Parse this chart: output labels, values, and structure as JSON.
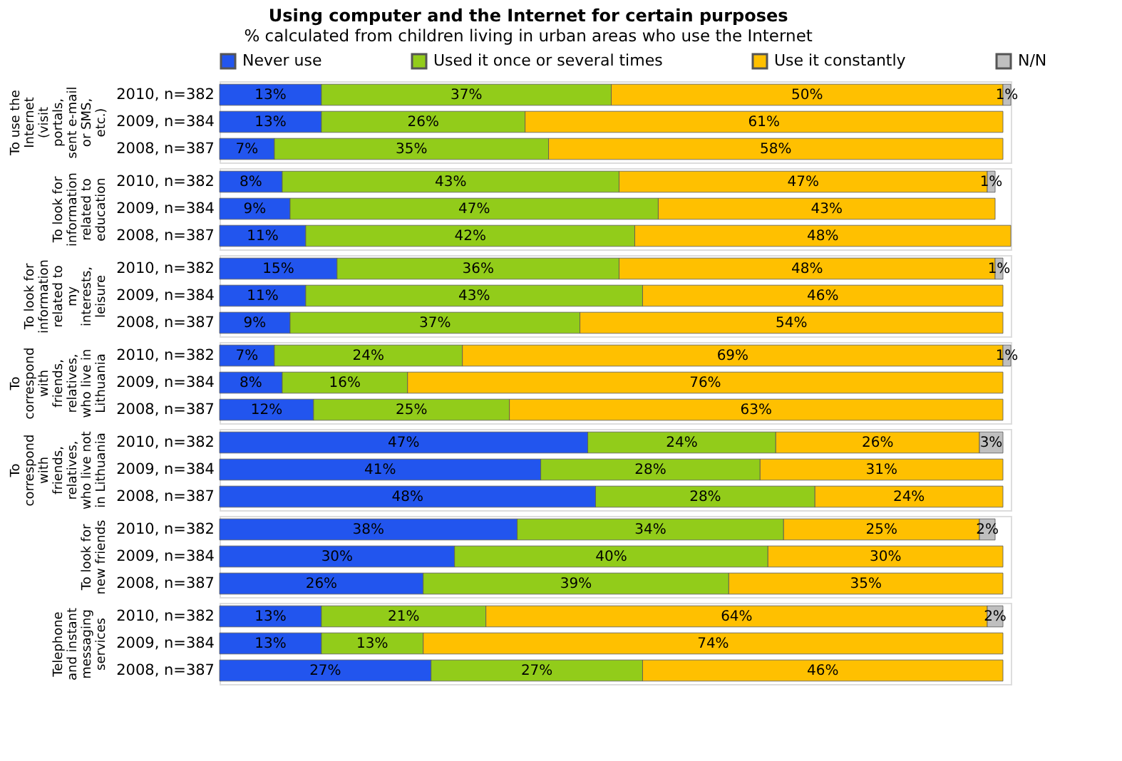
{
  "chart_data": [
    {
      "type": "bar",
      "orientation": "horizontal",
      "stacked": true,
      "data_labels": true,
      "legend": "top",
      "grid": false,
      "title": "Using computer and the Internet for certain purposes",
      "subtitle": "% calculated from children living in urban areas who use the Internet",
      "ylabel": "To use the Internet (visit portals, sent e-mail or SMS, etc.)",
      "categories": [
        "2010, n=382",
        "2009, n=384",
        "2008, n=387"
      ],
      "series": [
        {
          "name": "Never use",
          "color": "#2255ee",
          "values": [
            13,
            13,
            7
          ],
          "value_labels": [
            "13%",
            "13%",
            "7%"
          ]
        },
        {
          "name": "Used it once or several times",
          "color": "#92cc1a",
          "values": [
            37,
            26,
            35
          ],
          "value_labels": [
            "37%",
            "26%",
            "35%"
          ]
        },
        {
          "name": "Use it constantly",
          "color": "#ffc000",
          "values": [
            50,
            61,
            58
          ],
          "value_labels": [
            "50%",
            "61%",
            "58%"
          ]
        },
        {
          "name": "N/N",
          "color": "#bfbfbf",
          "values": [
            1,
            null,
            null
          ],
          "value_labels": [
            "1%",
            null,
            null
          ]
        }
      ]
    },
    {
      "type": "bar",
      "orientation": "horizontal",
      "stacked": true,
      "data_labels": true,
      "grid": false,
      "ylabel": "To look for information related to education",
      "categories": [
        "2010, n=382",
        "2009, n=384",
        "2008, n=387"
      ],
      "series": [
        {
          "color": "#2255ee",
          "values": [
            8,
            9,
            11
          ],
          "value_labels": [
            "8%",
            "9%",
            "11%"
          ]
        },
        {
          "color": "#92cc1a",
          "values": [
            43,
            47,
            42
          ],
          "value_labels": [
            "43%",
            "47%",
            "42%"
          ]
        },
        {
          "color": "#ffc000",
          "values": [
            47,
            43,
            48
          ],
          "value_labels": [
            "47%",
            "43%",
            "48%"
          ]
        },
        {
          "color": "#bfbfbf",
          "values": [
            1,
            null,
            null
          ],
          "value_labels": [
            "1%",
            null,
            null
          ]
        }
      ]
    },
    {
      "type": "bar",
      "orientation": "horizontal",
      "stacked": true,
      "data_labels": true,
      "grid": false,
      "ylabel": "To look for information related to my interests, leisure",
      "categories": [
        "2010, n=382",
        "2009, n=384",
        "2008, n=387"
      ],
      "series": [
        {
          "color": "#2255ee",
          "values": [
            15,
            11,
            9
          ],
          "value_labels": [
            "15%",
            "11%",
            "9%"
          ]
        },
        {
          "color": "#92cc1a",
          "values": [
            36,
            43,
            37
          ],
          "value_labels": [
            "36%",
            "43%",
            "37%"
          ]
        },
        {
          "color": "#ffc000",
          "values": [
            48,
            46,
            54
          ],
          "value_labels": [
            "48%",
            "46%",
            "54%"
          ]
        },
        {
          "color": "#bfbfbf",
          "values": [
            1,
            null,
            null
          ],
          "value_labels": [
            "1%",
            null,
            null
          ]
        }
      ]
    },
    {
      "type": "bar",
      "orientation": "horizontal",
      "stacked": true,
      "data_labels": true,
      "grid": false,
      "ylabel": "To correspond with friends, relatives, who live in Lithuania",
      "categories": [
        "2010, n=382",
        "2009, n=384",
        "2008, n=387"
      ],
      "series": [
        {
          "color": "#2255ee",
          "values": [
            7,
            8,
            12
          ],
          "value_labels": [
            "7%",
            "8%",
            "12%"
          ]
        },
        {
          "color": "#92cc1a",
          "values": [
            24,
            16,
            25
          ],
          "value_labels": [
            "24%",
            "16%",
            "25%"
          ]
        },
        {
          "color": "#ffc000",
          "values": [
            69,
            76,
            63
          ],
          "value_labels": [
            "69%",
            "76%",
            "63%"
          ]
        },
        {
          "color": "#bfbfbf",
          "values": [
            1,
            null,
            null
          ],
          "value_labels": [
            "1%",
            null,
            null
          ]
        }
      ]
    },
    {
      "type": "bar",
      "orientation": "horizontal",
      "stacked": true,
      "data_labels": true,
      "grid": false,
      "ylabel": "To correspond with friends, relatives, who live not in Lithuania",
      "categories": [
        "2010, n=382",
        "2009, n=384",
        "2008, n=387"
      ],
      "series": [
        {
          "color": "#2255ee",
          "values": [
            47,
            41,
            48
          ],
          "value_labels": [
            "47%",
            "41%",
            "48%"
          ]
        },
        {
          "color": "#92cc1a",
          "values": [
            24,
            28,
            28
          ],
          "value_labels": [
            "24%",
            "28%",
            "28%"
          ]
        },
        {
          "color": "#ffc000",
          "values": [
            26,
            31,
            24
          ],
          "value_labels": [
            "26%",
            "31%",
            "24%"
          ]
        },
        {
          "color": "#bfbfbf",
          "values": [
            3,
            null,
            null
          ],
          "value_labels": [
            "3%",
            null,
            null
          ]
        }
      ]
    },
    {
      "type": "bar",
      "orientation": "horizontal",
      "stacked": true,
      "data_labels": true,
      "grid": false,
      "ylabel": "To look for new friends",
      "categories": [
        "2010, n=382",
        "2009, n=384",
        "2008, n=387"
      ],
      "series": [
        {
          "color": "#2255ee",
          "values": [
            38,
            30,
            26
          ],
          "value_labels": [
            "38%",
            "30%",
            "26%"
          ]
        },
        {
          "color": "#92cc1a",
          "values": [
            34,
            40,
            39
          ],
          "value_labels": [
            "34%",
            "40%",
            "39%"
          ]
        },
        {
          "color": "#ffc000",
          "values": [
            25,
            30,
            35
          ],
          "value_labels": [
            "25%",
            "30%",
            "35%"
          ]
        },
        {
          "color": "#bfbfbf",
          "values": [
            2,
            null,
            null
          ],
          "value_labels": [
            "2%",
            null,
            null
          ]
        }
      ]
    },
    {
      "type": "bar",
      "orientation": "horizontal",
      "stacked": true,
      "data_labels": true,
      "grid": false,
      "ylabel": "Telephone and instant messaging services",
      "categories": [
        "2010, n=382",
        "2009, n=384",
        "2008, n=387"
      ],
      "series": [
        {
          "color": "#2255ee",
          "values": [
            13,
            13,
            27
          ],
          "value_labels": [
            "13%",
            "13%",
            "27%"
          ]
        },
        {
          "color": "#92cc1a",
          "values": [
            21,
            13,
            27
          ],
          "value_labels": [
            "21%",
            "13%",
            "27%"
          ]
        },
        {
          "color": "#ffc000",
          "values": [
            64,
            74,
            46
          ],
          "value_labels": [
            "64%",
            "74%",
            "46%"
          ]
        },
        {
          "color": "#bfbfbf",
          "values": [
            2,
            null,
            null
          ],
          "value_labels": [
            "2%",
            null,
            null
          ]
        }
      ]
    }
  ]
}
